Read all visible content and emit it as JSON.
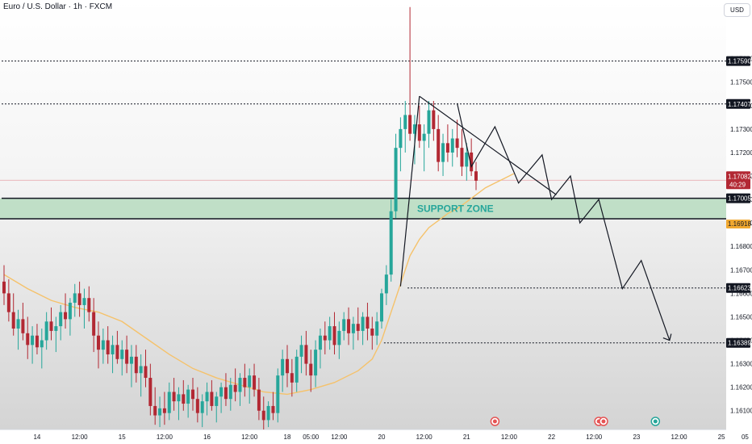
{
  "header": {
    "symbol_title": "Euro / U.S. Dollar · 1h · FXCM",
    "currency": "USD"
  },
  "colors": {
    "up": "#26a69a",
    "down": "#b22833",
    "ma": "#f5c26b",
    "zone_fill": "#b7dcc0",
    "zone_text": "#26a69a",
    "grid_bg_top": "#ffffff",
    "grid_bg_bottom": "#d4d4d4"
  },
  "chart_data": {
    "type": "candlestick",
    "title": "",
    "ylim": [
      1.1602,
      1.1785
    ],
    "y_ticks": [
      1.161,
      1.162,
      1.163,
      1.164,
      1.165,
      1.166,
      1.167,
      1.168,
      1.169,
      1.17,
      1.171,
      1.172,
      1.173,
      1.174,
      1.175,
      1.176
    ],
    "y_tick_labels": [
      "1.16100",
      "1.16200",
      "1.16300",
      "1.16400",
      "1.16500",
      "1.16600",
      "1.16700",
      "1.16800",
      "1.16900",
      "1.17000",
      "1.17100",
      "1.17200",
      "1.17300",
      "1.17400",
      "1.17500",
      "1.17600"
    ],
    "x_ticks": [
      {
        "i": 7,
        "label": "14"
      },
      {
        "i": 16,
        "label": "12:00"
      },
      {
        "i": 25,
        "label": "15"
      },
      {
        "i": 34,
        "label": "12:00"
      },
      {
        "i": 43,
        "label": "16"
      },
      {
        "i": 52,
        "label": "12:00"
      },
      {
        "i": 60,
        "label": "18"
      },
      {
        "i": 65,
        "label": "05:00"
      },
      {
        "i": 71,
        "label": "12:00"
      },
      {
        "i": 80,
        "label": "20"
      },
      {
        "i": 89,
        "label": "12:00"
      },
      {
        "i": 98,
        "label": "21"
      },
      {
        "i": 107,
        "label": "12:00"
      },
      {
        "i": 116,
        "label": "22"
      },
      {
        "i": 125,
        "label": "12:00"
      },
      {
        "i": 134,
        "label": "23"
      },
      {
        "i": 143,
        "label": "12:00"
      },
      {
        "i": 152,
        "label": "25"
      },
      {
        "i": 157,
        "label": "05"
      }
    ],
    "candles": [
      [
        1.1665,
        1.1672,
        1.1655,
        1.166
      ],
      [
        1.166,
        1.1666,
        1.1648,
        1.1652
      ],
      [
        1.1652,
        1.166,
        1.1642,
        1.1645
      ],
      [
        1.1645,
        1.1653,
        1.1636,
        1.1649
      ],
      [
        1.1649,
        1.1656,
        1.164,
        1.1643
      ],
      [
        1.1643,
        1.165,
        1.1632,
        1.1638
      ],
      [
        1.1638,
        1.1646,
        1.163,
        1.1642
      ],
      [
        1.1642,
        1.1647,
        1.1634,
        1.1637
      ],
      [
        1.1637,
        1.1645,
        1.1628,
        1.164
      ],
      [
        1.164,
        1.1652,
        1.1636,
        1.1648
      ],
      [
        1.1648,
        1.1654,
        1.164,
        1.1644
      ],
      [
        1.1644,
        1.165,
        1.1635,
        1.1646
      ],
      [
        1.1646,
        1.1655,
        1.164,
        1.1652
      ],
      [
        1.1652,
        1.166,
        1.1645,
        1.1649
      ],
      [
        1.1649,
        1.1658,
        1.1642,
        1.1656
      ],
      [
        1.1656,
        1.1664,
        1.165,
        1.166
      ],
      [
        1.166,
        1.1665,
        1.165,
        1.1655
      ],
      [
        1.1655,
        1.1662,
        1.1645,
        1.1658
      ],
      [
        1.1658,
        1.1663,
        1.1648,
        1.1652
      ],
      [
        1.1652,
        1.1658,
        1.1635,
        1.1642
      ],
      [
        1.1642,
        1.1648,
        1.1628,
        1.1636
      ],
      [
        1.1636,
        1.1645,
        1.163,
        1.164
      ],
      [
        1.164,
        1.1646,
        1.163,
        1.1634
      ],
      [
        1.1634,
        1.1642,
        1.1626,
        1.1638
      ],
      [
        1.1638,
        1.1644,
        1.163,
        1.1632
      ],
      [
        1.1632,
        1.164,
        1.1625,
        1.1636
      ],
      [
        1.1636,
        1.1642,
        1.1626,
        1.163
      ],
      [
        1.163,
        1.1638,
        1.162,
        1.1633
      ],
      [
        1.1633,
        1.1638,
        1.1622,
        1.1626
      ],
      [
        1.1626,
        1.1634,
        1.1616,
        1.1629
      ],
      [
        1.1629,
        1.1636,
        1.162,
        1.1624
      ],
      [
        1.1624,
        1.163,
        1.1608,
        1.1612
      ],
      [
        1.1612,
        1.162,
        1.1604,
        1.1608
      ],
      [
        1.1608,
        1.1616,
        1.1603,
        1.1611
      ],
      [
        1.1611,
        1.1618,
        1.1604,
        1.1609
      ],
      [
        1.1609,
        1.1622,
        1.1606,
        1.1618
      ],
      [
        1.1618,
        1.1624,
        1.161,
        1.1614
      ],
      [
        1.1614,
        1.162,
        1.1606,
        1.1617
      ],
      [
        1.1617,
        1.1623,
        1.161,
        1.1613
      ],
      [
        1.1613,
        1.1621,
        1.1607,
        1.1619
      ],
      [
        1.1619,
        1.1624,
        1.161,
        1.1615
      ],
      [
        1.1615,
        1.162,
        1.1605,
        1.1609
      ],
      [
        1.1609,
        1.1617,
        1.1603,
        1.1614
      ],
      [
        1.1614,
        1.1622,
        1.1608,
        1.1618
      ],
      [
        1.1618,
        1.1623,
        1.161,
        1.1612
      ],
      [
        1.1612,
        1.1618,
        1.1605,
        1.1616
      ],
      [
        1.1616,
        1.1622,
        1.1609,
        1.162
      ],
      [
        1.162,
        1.1626,
        1.1612,
        1.1615
      ],
      [
        1.1615,
        1.1624,
        1.161,
        1.1621
      ],
      [
        1.1621,
        1.1628,
        1.1614,
        1.1618
      ],
      [
        1.1618,
        1.1626,
        1.1612,
        1.1624
      ],
      [
        1.1624,
        1.163,
        1.1616,
        1.162
      ],
      [
        1.162,
        1.1628,
        1.1613,
        1.1625
      ],
      [
        1.1625,
        1.163,
        1.1616,
        1.1619
      ],
      [
        1.1619,
        1.1624,
        1.1606,
        1.161
      ],
      [
        1.161,
        1.1616,
        1.1602,
        1.1606
      ],
      [
        1.1606,
        1.1614,
        1.1603,
        1.1612
      ],
      [
        1.1612,
        1.1618,
        1.1606,
        1.1609
      ],
      [
        1.1609,
        1.1628,
        1.1605,
        1.1625
      ],
      [
        1.1625,
        1.1636,
        1.1618,
        1.1632
      ],
      [
        1.1632,
        1.1638,
        1.162,
        1.1626
      ],
      [
        1.1626,
        1.1632,
        1.1616,
        1.1622
      ],
      [
        1.1622,
        1.1636,
        1.1618,
        1.1633
      ],
      [
        1.1633,
        1.1642,
        1.1626,
        1.1638
      ],
      [
        1.1638,
        1.1644,
        1.1625,
        1.163
      ],
      [
        1.163,
        1.1636,
        1.1618,
        1.1625
      ],
      [
        1.1625,
        1.164,
        1.162,
        1.1636
      ],
      [
        1.1636,
        1.1645,
        1.1628,
        1.1642
      ],
      [
        1.1642,
        1.1648,
        1.1634,
        1.164
      ],
      [
        1.164,
        1.165,
        1.1636,
        1.1646
      ],
      [
        1.1646,
        1.1652,
        1.1634,
        1.1638
      ],
      [
        1.1638,
        1.1648,
        1.1632,
        1.1644
      ],
      [
        1.1644,
        1.1652,
        1.164,
        1.1649
      ],
      [
        1.1649,
        1.1654,
        1.1638,
        1.1643
      ],
      [
        1.1643,
        1.165,
        1.1636,
        1.1647
      ],
      [
        1.1647,
        1.1654,
        1.164,
        1.1644
      ],
      [
        1.1644,
        1.1652,
        1.1638,
        1.165
      ],
      [
        1.165,
        1.1656,
        1.164,
        1.1645
      ],
      [
        1.1645,
        1.165,
        1.1636,
        1.1642
      ],
      [
        1.1642,
        1.1652,
        1.1638,
        1.1648
      ],
      [
        1.1648,
        1.1662,
        1.1645,
        1.166
      ],
      [
        1.166,
        1.1672,
        1.1655,
        1.1668
      ],
      [
        1.1668,
        1.17,
        1.1665,
        1.1695
      ],
      [
        1.1695,
        1.1728,
        1.1692,
        1.1722
      ],
      [
        1.1722,
        1.1735,
        1.1712,
        1.173
      ],
      [
        1.173,
        1.1742,
        1.172,
        1.1736
      ],
      [
        1.1736,
        1.1782,
        1.1725,
        1.1728
      ],
      [
        1.1728,
        1.1736,
        1.1715,
        1.1732
      ],
      [
        1.1732,
        1.174,
        1.1722,
        1.1725
      ],
      [
        1.1725,
        1.1732,
        1.1712,
        1.1728
      ],
      [
        1.1728,
        1.1742,
        1.1722,
        1.1738
      ],
      [
        1.1738,
        1.1742,
        1.1725,
        1.173
      ],
      [
        1.173,
        1.1736,
        1.1712,
        1.1716
      ],
      [
        1.1716,
        1.1728,
        1.171,
        1.1724
      ],
      [
        1.1724,
        1.1732,
        1.1716,
        1.172
      ],
      [
        1.172,
        1.173,
        1.1714,
        1.1726
      ],
      [
        1.1726,
        1.1734,
        1.1718,
        1.1722
      ],
      [
        1.1722,
        1.173,
        1.171,
        1.1714
      ],
      [
        1.1714,
        1.1724,
        1.1708,
        1.172
      ],
      [
        1.172,
        1.1726,
        1.171,
        1.1712
      ],
      [
        1.1712,
        1.1716,
        1.1704,
        1.1708
      ]
    ],
    "moving_average": [
      [
        0,
        1.1668
      ],
      [
        5,
        1.1662
      ],
      [
        10,
        1.1657
      ],
      [
        15,
        1.1654
      ],
      [
        20,
        1.1652
      ],
      [
        25,
        1.1648
      ],
      [
        30,
        1.1641
      ],
      [
        35,
        1.1634
      ],
      [
        40,
        1.1628
      ],
      [
        45,
        1.1624
      ],
      [
        50,
        1.1621
      ],
      [
        55,
        1.1618
      ],
      [
        60,
        1.1617
      ],
      [
        65,
        1.1619
      ],
      [
        70,
        1.1622
      ],
      [
        75,
        1.1627
      ],
      [
        78,
        1.1632
      ],
      [
        80,
        1.164
      ],
      [
        82,
        1.1652
      ],
      [
        84,
        1.1664
      ],
      [
        86,
        1.1676
      ],
      [
        88,
        1.1683
      ],
      [
        90,
        1.1688
      ],
      [
        92,
        1.1691
      ],
      [
        94,
        1.1694
      ],
      [
        96,
        1.1696
      ],
      [
        98,
        1.1699
      ],
      [
        100,
        1.1702
      ],
      [
        102,
        1.1705
      ],
      [
        104,
        1.1707
      ],
      [
        106,
        1.1709
      ],
      [
        108,
        1.1711
      ]
    ],
    "horizontal_levels": [
      {
        "price": 1.1759,
        "label": "1.17590",
        "style": "dotted",
        "from_i": 0
      },
      {
        "price": 1.17407,
        "label": "1.17407",
        "style": "dotted",
        "from_i": 0
      },
      {
        "price": 1.17005,
        "label": "1.17005",
        "style": "solid",
        "from_i": 0
      },
      {
        "price": 1.16623,
        "label": "1.16623",
        "style": "dotted",
        "from_i": 86
      },
      {
        "price": 1.16389,
        "label": "1.16389",
        "style": "dotted",
        "from_i": 81
      }
    ],
    "support_zone": {
      "top": 1.17005,
      "bottom": 1.16918,
      "label": "SUPPORT ZONE"
    },
    "current_price": {
      "label": "1.17082",
      "countdown": "40:29",
      "price": 1.17082,
      "color": "#b22833"
    },
    "ma_tag": {
      "label": "1.16918",
      "price": 1.16918,
      "color": "#f0a830"
    },
    "trendlines": [
      {
        "points": [
          [
            88,
            1.1744
          ],
          [
            117,
            1.1702
          ]
        ]
      },
      {
        "points": [
          [
            88,
            1.1744
          ],
          [
            84,
            1.1663
          ]
        ]
      }
    ],
    "projection_path": [
      [
        96,
        1.1741
      ],
      [
        99,
        1.1714
      ],
      [
        104,
        1.1731
      ],
      [
        109,
        1.1707
      ],
      [
        114,
        1.1719
      ],
      [
        116,
        1.17
      ],
      [
        120,
        1.171
      ],
      [
        122,
        1.169
      ],
      [
        126,
        1.17
      ],
      [
        131,
        1.1662
      ],
      [
        135,
        1.1674
      ],
      [
        141,
        1.164
      ]
    ]
  }
}
